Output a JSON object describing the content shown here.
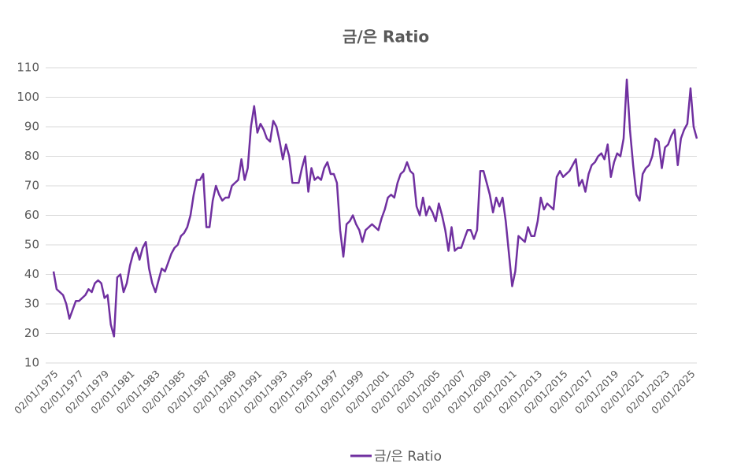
{
  "chart_data": {
    "type": "line",
    "title": "금/은 Ratio",
    "x": [
      "02/01/1975",
      "05/01/1975",
      "08/01/1975",
      "11/01/1975",
      "02/01/1976",
      "05/01/1976",
      "08/01/1976",
      "11/01/1976",
      "02/01/1977",
      "05/01/1977",
      "08/01/1977",
      "11/01/1977",
      "02/01/1978",
      "05/01/1978",
      "08/01/1978",
      "11/01/1978",
      "02/01/1979",
      "05/01/1979",
      "08/01/1979",
      "11/01/1979",
      "02/01/1980",
      "05/01/1980",
      "08/01/1980",
      "11/01/1980",
      "02/01/1981",
      "05/01/1981",
      "08/01/1981",
      "11/01/1981",
      "02/01/1982",
      "05/01/1982",
      "08/01/1982",
      "11/01/1982",
      "02/01/1983",
      "05/01/1983",
      "08/01/1983",
      "11/01/1983",
      "02/01/1984",
      "05/01/1984",
      "08/01/1984",
      "11/01/1984",
      "02/01/1985",
      "05/01/1985",
      "08/01/1985",
      "11/01/1985",
      "02/01/1986",
      "05/01/1986",
      "08/01/1986",
      "11/01/1986",
      "02/01/1987",
      "05/01/1987",
      "08/01/1987",
      "11/01/1987",
      "02/01/1988",
      "05/01/1988",
      "08/01/1988",
      "11/01/1988",
      "02/01/1989",
      "05/01/1989",
      "08/01/1989",
      "11/01/1989",
      "02/01/1990",
      "05/01/1990",
      "08/01/1990",
      "11/01/1990",
      "02/01/1991",
      "05/01/1991",
      "08/01/1991",
      "11/01/1991",
      "02/01/1992",
      "05/01/1992",
      "08/01/1992",
      "11/01/1992",
      "02/01/1993",
      "05/01/1993",
      "08/01/1993",
      "11/01/1993",
      "02/01/1994",
      "05/01/1994",
      "08/01/1994",
      "11/01/1994",
      "02/01/1995",
      "05/01/1995",
      "08/01/1995",
      "11/01/1995",
      "02/01/1996",
      "05/01/1996",
      "08/01/1996",
      "11/01/1996",
      "02/01/1997",
      "05/01/1997",
      "08/01/1997",
      "11/01/1997",
      "02/01/1998",
      "05/01/1998",
      "08/01/1998",
      "11/01/1998",
      "02/01/1999",
      "05/01/1999",
      "08/01/1999",
      "11/01/1999",
      "02/01/2000",
      "05/01/2000",
      "08/01/2000",
      "11/01/2000",
      "02/01/2001",
      "05/01/2001",
      "08/01/2001",
      "11/01/2001",
      "02/01/2002",
      "05/01/2002",
      "08/01/2002",
      "11/01/2002",
      "02/01/2003",
      "05/01/2003",
      "08/01/2003",
      "11/01/2003",
      "02/01/2004",
      "05/01/2004",
      "08/01/2004",
      "11/01/2004",
      "02/01/2005",
      "05/01/2005",
      "08/01/2005",
      "11/01/2005",
      "02/01/2006",
      "05/01/2006",
      "08/01/2006",
      "11/01/2006",
      "02/01/2007",
      "05/01/2007",
      "08/01/2007",
      "11/01/2007",
      "02/01/2008",
      "05/01/2008",
      "08/01/2008",
      "11/01/2008",
      "02/01/2009",
      "05/01/2009",
      "08/01/2009",
      "11/01/2009",
      "02/01/2010",
      "05/01/2010",
      "08/01/2010",
      "11/01/2010",
      "02/01/2011",
      "05/01/2011",
      "08/01/2011",
      "11/01/2011",
      "02/01/2012",
      "05/01/2012",
      "08/01/2012",
      "11/01/2012",
      "02/01/2013",
      "05/01/2013",
      "08/01/2013",
      "11/01/2013",
      "02/01/2014",
      "05/01/2014",
      "08/01/2014",
      "11/01/2014",
      "02/01/2015",
      "05/01/2015",
      "08/01/2015",
      "11/01/2015",
      "02/01/2016",
      "05/01/2016",
      "08/01/2016",
      "11/01/2016",
      "02/01/2017",
      "05/01/2017",
      "08/01/2017",
      "11/01/2017",
      "02/01/2018",
      "05/01/2018",
      "08/01/2018",
      "11/01/2018",
      "02/01/2019",
      "05/01/2019",
      "08/01/2019",
      "11/01/2019",
      "02/01/2020",
      "05/01/2020",
      "08/01/2020",
      "11/01/2020",
      "02/01/2021",
      "05/01/2021",
      "08/01/2021",
      "11/01/2021",
      "02/01/2022",
      "05/01/2022",
      "08/01/2022",
      "11/01/2022",
      "02/01/2023",
      "05/01/2023",
      "08/01/2023",
      "11/01/2023",
      "02/01/2024",
      "05/01/2024",
      "08/01/2024",
      "11/01/2024",
      "02/01/2025",
      "05/01/2025",
      "08/01/2025"
    ],
    "series": [
      {
        "name": "금/은 Ratio",
        "color": "#7030a0",
        "values": [
          41,
          35,
          34,
          33,
          30,
          25,
          28,
          31,
          31,
          32,
          33,
          35,
          34,
          37,
          38,
          37,
          32,
          33,
          23,
          19,
          39,
          40,
          34,
          37,
          43,
          47,
          49,
          45,
          49,
          51,
          42,
          37,
          34,
          38,
          42,
          41,
          44,
          47,
          49,
          50,
          53,
          54,
          56,
          60,
          67,
          72,
          72,
          74,
          56,
          56,
          65,
          70,
          67,
          65,
          66,
          66,
          70,
          71,
          72,
          79,
          72,
          76,
          90,
          97,
          88,
          91,
          89,
          86,
          85,
          92,
          90,
          85,
          79,
          84,
          80,
          71,
          71,
          71,
          76,
          80,
          68,
          76,
          72,
          73,
          72,
          76,
          78,
          74,
          74,
          71,
          55,
          46,
          57,
          58,
          60,
          57,
          55,
          51,
          55,
          56,
          57,
          56,
          55,
          59,
          62,
          66,
          67,
          66,
          71,
          74,
          75,
          78,
          75,
          74,
          63,
          60,
          66,
          60,
          63,
          61,
          58,
          64,
          60,
          55,
          48,
          56,
          48,
          49,
          49,
          52,
          55,
          55,
          52,
          55,
          75,
          75,
          71,
          67,
          61,
          66,
          63,
          66,
          58,
          47,
          36,
          41,
          53,
          52,
          51,
          56,
          53,
          53,
          58,
          66,
          62,
          64,
          63,
          62,
          73,
          75,
          73,
          74,
          75,
          77,
          79,
          70,
          72,
          68,
          74,
          77,
          78,
          80,
          81,
          79,
          84,
          73,
          78,
          81,
          80,
          86,
          106,
          89,
          77,
          67,
          65,
          74,
          76,
          77,
          80,
          86,
          85,
          76,
          83,
          84,
          87,
          89,
          77,
          86,
          89,
          91,
          103,
          90,
          86
        ]
      }
    ],
    "xlim": [
      "02/01/1975",
      "08/01/2025"
    ],
    "xticks": [
      "02/01/1975",
      "02/01/1977",
      "02/01/1979",
      "02/01/1981",
      "02/01/1983",
      "02/01/1985",
      "02/01/1987",
      "02/01/1989",
      "02/01/1991",
      "02/01/1993",
      "02/01/1995",
      "02/01/1997",
      "02/01/1999",
      "02/01/2001",
      "02/01/2003",
      "02/01/2005",
      "02/01/2007",
      "02/01/2009",
      "02/01/2011",
      "02/01/2013",
      "02/01/2015",
      "02/01/2017",
      "02/01/2019",
      "02/01/2021",
      "02/01/2023",
      "02/01/2025"
    ],
    "ylim": [
      10,
      110
    ],
    "yticks": [
      10,
      20,
      30,
      40,
      50,
      60,
      70,
      80,
      90,
      100,
      110
    ],
    "grid": true,
    "legend": "bottom"
  }
}
